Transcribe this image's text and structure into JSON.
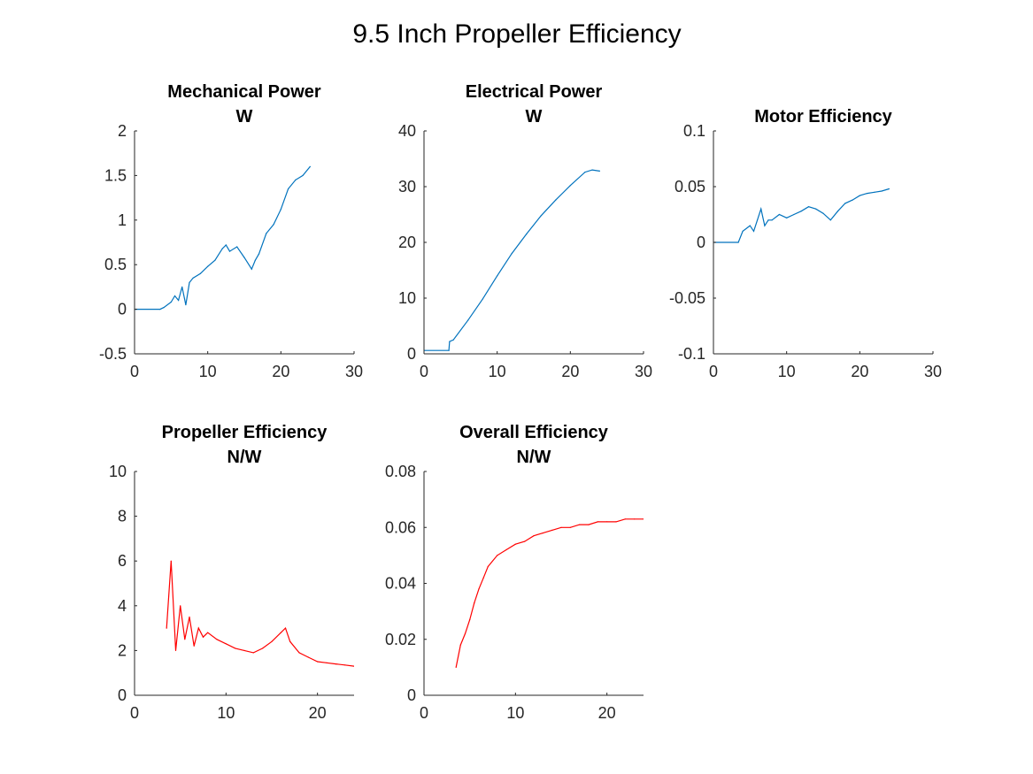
{
  "figure": {
    "title": "9.5 Inch Propeller Efficiency"
  },
  "chart_data": [
    {
      "id": "mech",
      "type": "line",
      "title_lines": [
        "Mechanical Power",
        "W"
      ],
      "xlim": [
        0,
        30
      ],
      "ylim": [
        -0.5,
        2
      ],
      "xticks": [
        0,
        10,
        20,
        30
      ],
      "xtick_labels": [
        "0",
        "10",
        "20",
        "30"
      ],
      "yticks": [
        -0.5,
        0,
        0.5,
        1,
        1.5,
        2
      ],
      "ytick_labels": [
        "-0.5",
        "0",
        "0.5",
        "1",
        "1.5",
        "2"
      ],
      "color": "#0072BD",
      "series": [
        {
          "x": [
            0,
            3.5,
            4,
            5,
            5.5,
            6,
            6.5,
            7,
            7.5,
            8,
            9,
            10,
            11,
            12,
            12.5,
            13,
            14,
            15,
            16,
            16.5,
            17,
            18,
            19,
            20,
            21,
            22,
            23,
            24
          ],
          "y": [
            0,
            0,
            0.02,
            0.08,
            0.15,
            0.1,
            0.25,
            0.05,
            0.3,
            0.35,
            0.4,
            0.48,
            0.55,
            0.68,
            0.72,
            0.65,
            0.7,
            0.58,
            0.45,
            0.55,
            0.62,
            0.85,
            0.95,
            1.12,
            1.35,
            1.45,
            1.5,
            1.6
          ]
        }
      ]
    },
    {
      "id": "elec",
      "type": "line",
      "title_lines": [
        "Electrical Power",
        "W"
      ],
      "xlim": [
        0,
        30
      ],
      "ylim": [
        0,
        40
      ],
      "xticks": [
        0,
        10,
        20,
        30
      ],
      "xtick_labels": [
        "0",
        "10",
        "20",
        "30"
      ],
      "yticks": [
        0,
        10,
        20,
        30,
        40
      ],
      "ytick_labels": [
        "0",
        "10",
        "20",
        "30",
        "40"
      ],
      "color": "#0072BD",
      "series": [
        {
          "x": [
            0,
            3.4,
            3.5,
            4,
            6,
            8,
            10,
            12,
            14,
            16,
            18,
            20,
            22,
            23,
            24
          ],
          "y": [
            0.6,
            0.6,
            2.2,
            2.5,
            6,
            9.8,
            14,
            18,
            21.5,
            24.8,
            27.6,
            30.2,
            32.6,
            33.0,
            32.8
          ]
        }
      ]
    },
    {
      "id": "motor",
      "type": "line",
      "title_lines": [
        "Motor Efficiency"
      ],
      "xlim": [
        0,
        30
      ],
      "ylim": [
        -0.1,
        0.1
      ],
      "xticks": [
        0,
        10,
        20,
        30
      ],
      "xtick_labels": [
        "0",
        "10",
        "20",
        "30"
      ],
      "yticks": [
        -0.1,
        -0.05,
        0,
        0.05,
        0.1
      ],
      "ytick_labels": [
        "-0.1",
        "-0.05",
        "0",
        "0.05",
        "0.1"
      ],
      "color": "#0072BD",
      "series": [
        {
          "x": [
            0,
            3.4,
            4,
            5,
            5.5,
            6,
            6.5,
            7,
            7.5,
            8,
            9,
            10,
            11,
            12,
            13,
            14,
            15,
            16,
            17,
            18,
            19,
            20,
            21,
            22,
            23,
            24
          ],
          "y": [
            0,
            0,
            0.01,
            0.015,
            0.01,
            0.02,
            0.03,
            0.015,
            0.02,
            0.02,
            0.025,
            0.022,
            0.025,
            0.028,
            0.032,
            0.03,
            0.026,
            0.02,
            0.028,
            0.035,
            0.038,
            0.042,
            0.044,
            0.045,
            0.046,
            0.048
          ]
        }
      ]
    },
    {
      "id": "prop",
      "type": "line",
      "title_lines": [
        "Propeller Efficiency",
        "N/W"
      ],
      "xlim": [
        0,
        24
      ],
      "ylim": [
        0,
        10
      ],
      "xticks": [
        0,
        10,
        20
      ],
      "xtick_labels": [
        "0",
        "10",
        "20"
      ],
      "yticks": [
        0,
        2,
        4,
        6,
        8,
        10
      ],
      "ytick_labels": [
        "0",
        "2",
        "4",
        "6",
        "8",
        "10"
      ],
      "color": "#FF0000",
      "series": [
        {
          "x": [
            3.5,
            4,
            4.5,
            5,
            5.5,
            6,
            6.5,
            7,
            7.5,
            8,
            9,
            10,
            11,
            12,
            13,
            14,
            15,
            16,
            16.5,
            17,
            18,
            19,
            20,
            21,
            22,
            23,
            24
          ],
          "y": [
            3,
            6,
            2,
            4,
            2.5,
            3.5,
            2.2,
            3,
            2.6,
            2.8,
            2.5,
            2.3,
            2.1,
            2.0,
            1.9,
            2.1,
            2.4,
            2.8,
            3.0,
            2.4,
            1.9,
            1.7,
            1.5,
            1.45,
            1.4,
            1.35,
            1.3
          ]
        }
      ]
    },
    {
      "id": "overall",
      "type": "line",
      "title_lines": [
        "Overall Efficiency",
        "N/W"
      ],
      "xlim": [
        0,
        24
      ],
      "ylim": [
        0,
        0.08
      ],
      "xticks": [
        0,
        10,
        20
      ],
      "xtick_labels": [
        "0",
        "10",
        "20"
      ],
      "yticks": [
        0,
        0.02,
        0.04,
        0.06,
        0.08
      ],
      "ytick_labels": [
        "0",
        "0.02",
        "0.04",
        "0.06",
        "0.08"
      ],
      "color": "#FF0000",
      "series": [
        {
          "x": [
            3.5,
            4,
            4.5,
            5,
            5.5,
            6,
            6.5,
            7,
            8,
            9,
            10,
            11,
            12,
            13,
            14,
            15,
            16,
            17,
            18,
            19,
            20,
            21,
            22,
            23,
            24
          ],
          "y": [
            0.01,
            0.018,
            0.022,
            0.027,
            0.033,
            0.038,
            0.042,
            0.046,
            0.05,
            0.052,
            0.054,
            0.055,
            0.057,
            0.058,
            0.059,
            0.06,
            0.06,
            0.061,
            0.061,
            0.062,
            0.062,
            0.062,
            0.063,
            0.063,
            0.063
          ]
        }
      ]
    }
  ]
}
